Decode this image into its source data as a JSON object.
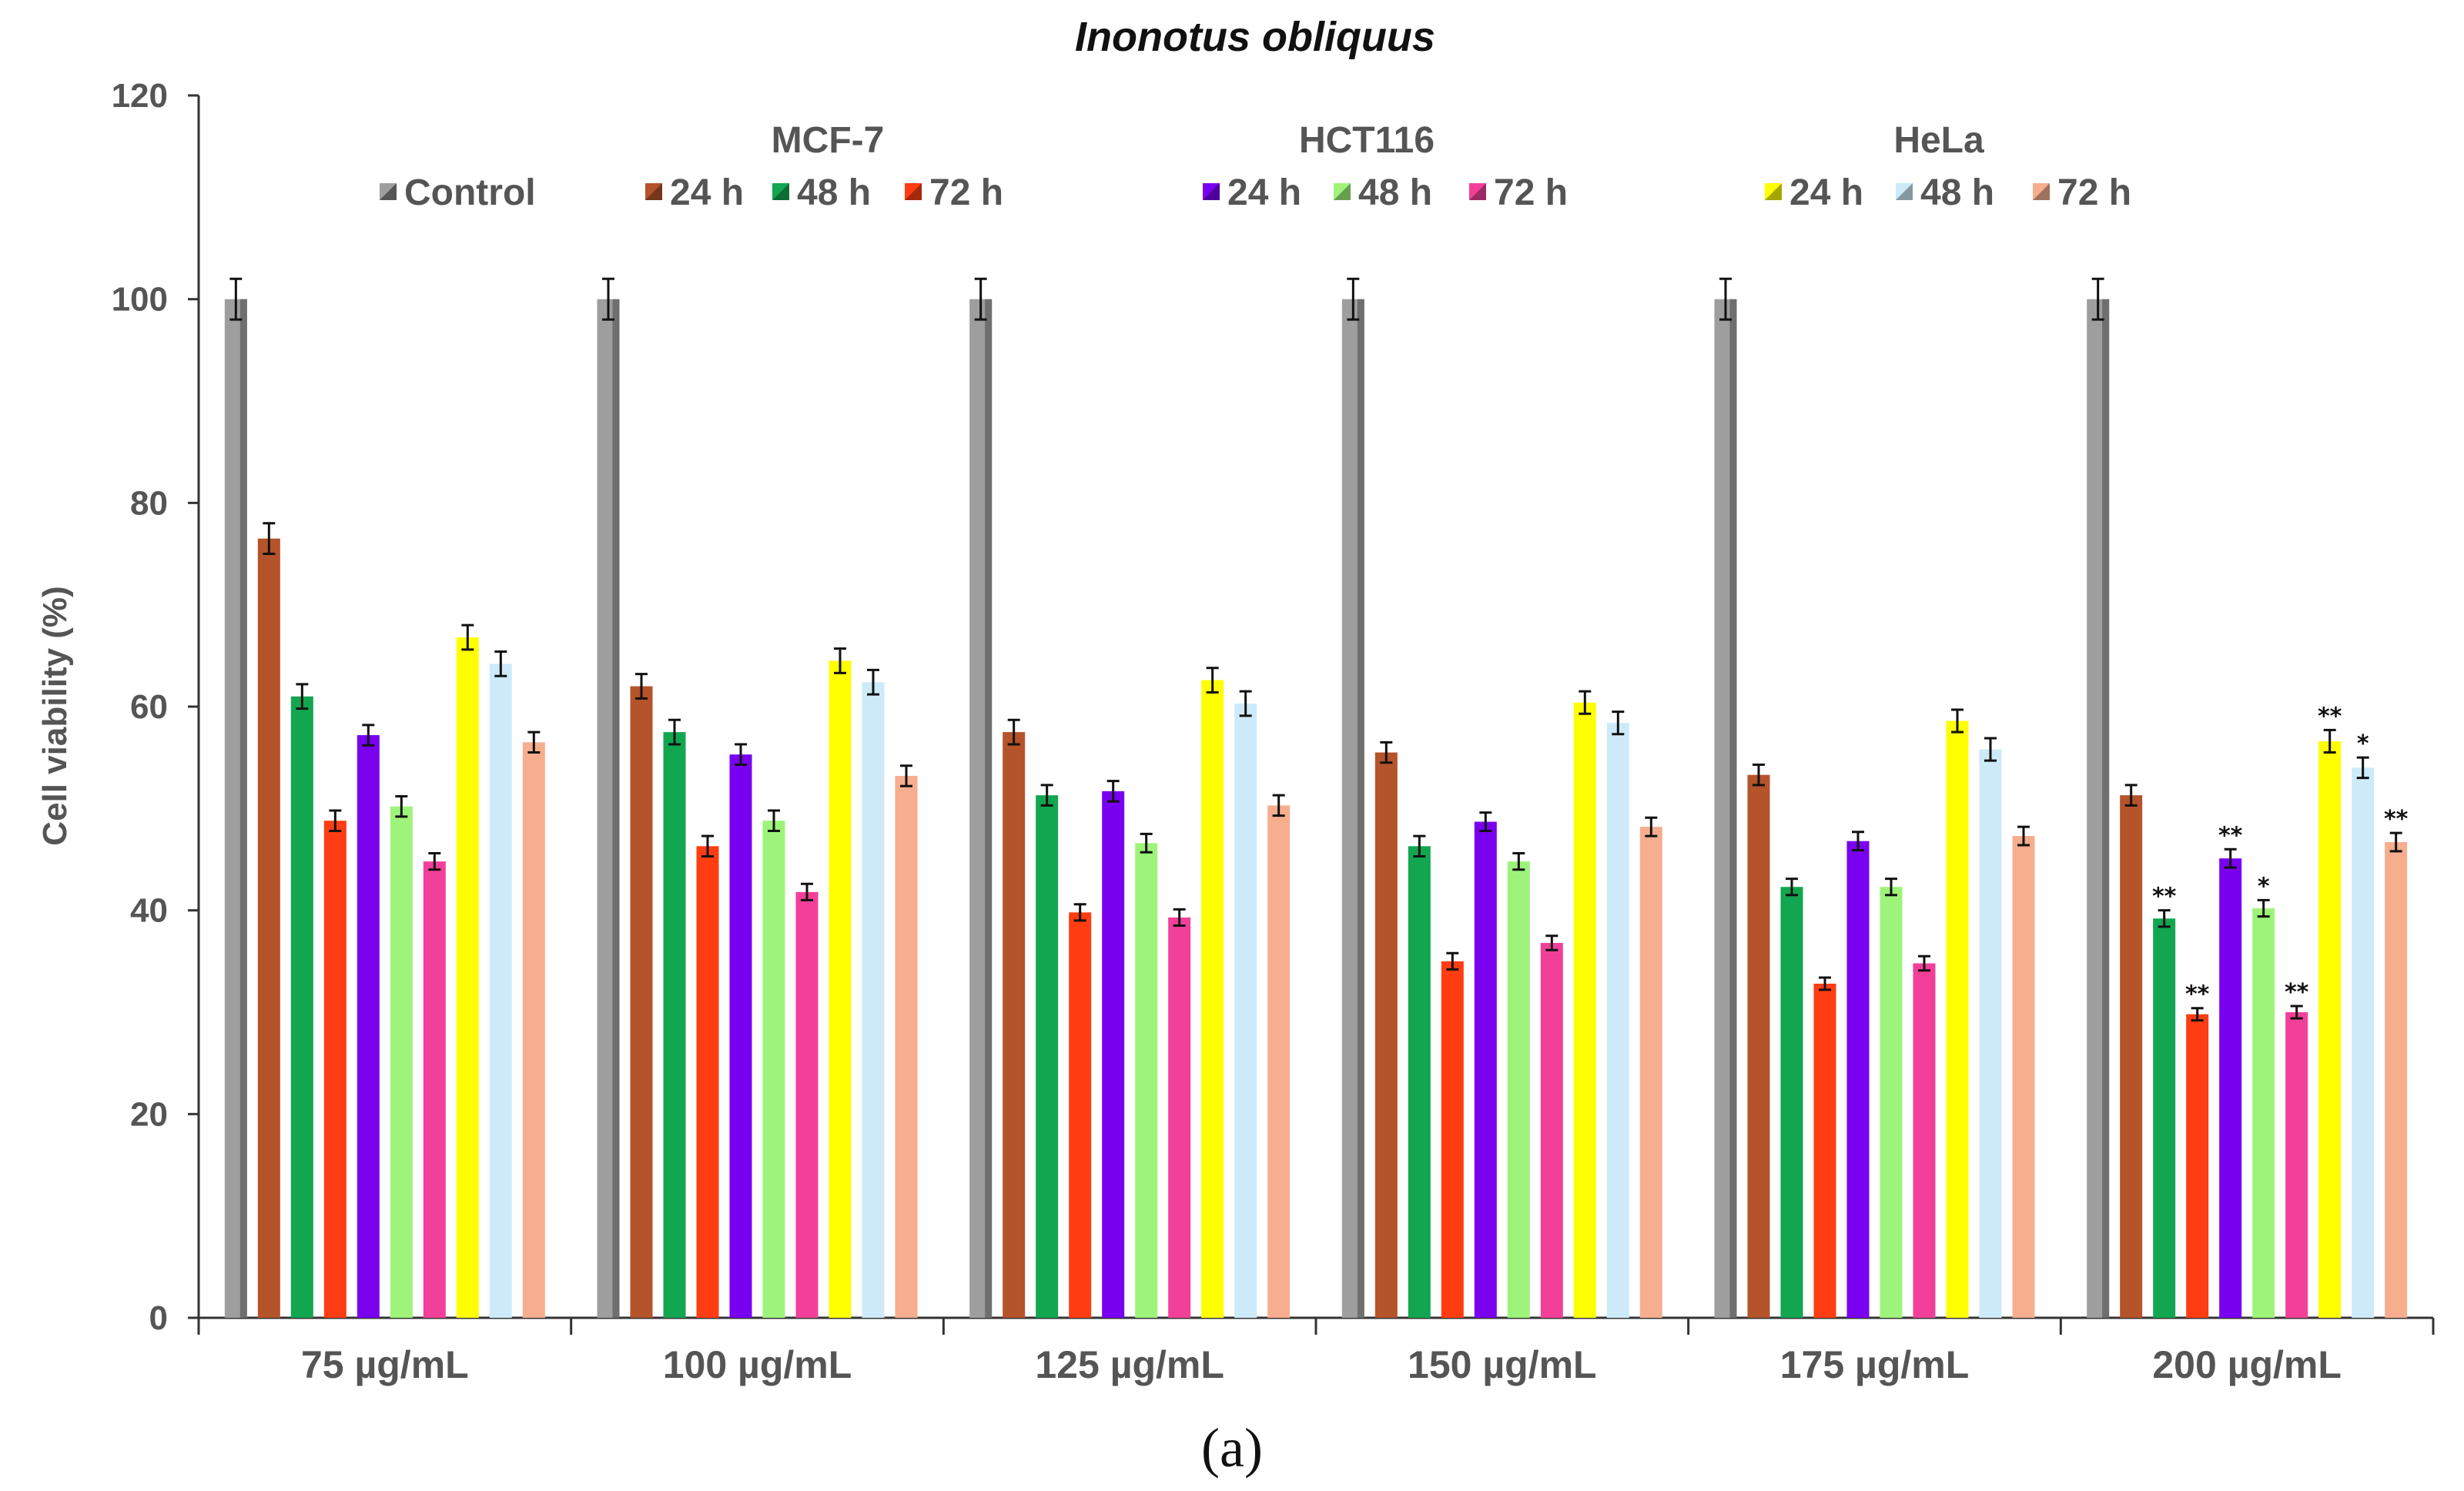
{
  "caption": "(a)",
  "chart_data": {
    "type": "bar",
    "title": "Inonotus obliquus",
    "xlabel": "",
    "ylabel": "Cell viability (%)",
    "ylim": [
      0,
      120
    ],
    "yticks": [
      0,
      20,
      40,
      60,
      80,
      100,
      120
    ],
    "grid": false,
    "categories": [
      "75 µg/mL",
      "100 µg/mL",
      "125 µg/mL",
      "150 µg/mL",
      "175 µg/mL",
      "200 µg/mL"
    ],
    "legend_groups": [
      {
        "name": "",
        "series": [
          "Control"
        ]
      },
      {
        "name": "MCF-7",
        "series": [
          "MCF-7 24 h",
          "MCF-7 48 h",
          "MCF-7 72 h"
        ]
      },
      {
        "name": "HCT116",
        "series": [
          "HCT116 24 h",
          "HCT116 48 h",
          "HCT116 72 h"
        ]
      },
      {
        "name": "HeLa",
        "series": [
          "HeLa 24 h",
          "HeLa 48 h",
          "HeLa 72 h"
        ]
      }
    ],
    "series": [
      {
        "name": "Control",
        "label": "Control",
        "color": "#9e9e9e",
        "values": [
          100,
          100,
          100,
          100,
          100,
          100
        ],
        "errors": [
          2,
          2,
          2,
          2,
          2,
          2
        ],
        "sig": [
          "",
          "",
          "",
          "",
          "",
          ""
        ]
      },
      {
        "name": "MCF-7 24 h",
        "label": "24 h",
        "color": "#b5532a",
        "values": [
          76.5,
          62,
          57.5,
          55.5,
          53.3,
          51.3
        ],
        "errors": [
          1.5,
          1.2,
          1.2,
          1.0,
          1.0,
          1.0
        ],
        "sig": [
          "",
          "",
          "",
          "",
          "",
          ""
        ]
      },
      {
        "name": "MCF-7 48 h",
        "label": "48 h",
        "color": "#12a650",
        "values": [
          61,
          57.5,
          51.3,
          46.3,
          42.3,
          39.2
        ],
        "errors": [
          1.2,
          1.2,
          1.0,
          1.0,
          0.8,
          0.8
        ],
        "sig": [
          "",
          "",
          "",
          "",
          "",
          "**"
        ]
      },
      {
        "name": "MCF-7 72 h",
        "label": "72 h",
        "color": "#ff3d12",
        "values": [
          48.8,
          46.3,
          39.8,
          35,
          32.8,
          29.8
        ],
        "errors": [
          1.0,
          1.0,
          0.8,
          0.8,
          0.6,
          0.6
        ],
        "sig": [
          "",
          "",
          "",
          "",
          "",
          "**"
        ]
      },
      {
        "name": "HCT116 24 h",
        "label": "24 h",
        "color": "#7a00f0",
        "values": [
          57.2,
          55.3,
          51.7,
          48.7,
          46.8,
          45.1
        ],
        "errors": [
          1.0,
          1.0,
          1.0,
          0.9,
          0.9,
          0.9
        ],
        "sig": [
          "",
          "",
          "",
          "",
          "",
          "**"
        ]
      },
      {
        "name": "HCT116 48 h",
        "label": "48 h",
        "color": "#9ef47a",
        "values": [
          50.2,
          48.8,
          46.6,
          44.8,
          42.3,
          40.2
        ],
        "errors": [
          1.0,
          1.0,
          0.9,
          0.8,
          0.8,
          0.8
        ],
        "sig": [
          "",
          "",
          "",
          "",
          "",
          "*"
        ]
      },
      {
        "name": "HCT116 72 h",
        "label": "72 h",
        "color": "#f2409a",
        "values": [
          44.8,
          41.8,
          39.3,
          36.8,
          34.8,
          30
        ],
        "errors": [
          0.8,
          0.8,
          0.8,
          0.7,
          0.7,
          0.6
        ],
        "sig": [
          "",
          "",
          "",
          "",
          "",
          "**"
        ]
      },
      {
        "name": "HeLa 24 h",
        "label": "24 h",
        "color": "#ffff00",
        "values": [
          66.8,
          64.5,
          62.6,
          60.4,
          58.6,
          56.6
        ],
        "errors": [
          1.2,
          1.2,
          1.2,
          1.1,
          1.1,
          1.1
        ],
        "sig": [
          "",
          "",
          "",
          "",
          "",
          "**"
        ]
      },
      {
        "name": "HeLa 48 h",
        "label": "48 h",
        "color": "#cdeaf8",
        "values": [
          64.2,
          62.4,
          60.3,
          58.4,
          55.8,
          54
        ],
        "errors": [
          1.2,
          1.2,
          1.2,
          1.1,
          1.1,
          1.0
        ],
        "sig": [
          "",
          "",
          "",
          "",
          "",
          "*"
        ]
      },
      {
        "name": "HeLa 72 h",
        "label": "72 h",
        "color": "#f6ae8e",
        "values": [
          56.5,
          53.2,
          50.3,
          48.2,
          47.3,
          46.7
        ],
        "errors": [
          1.0,
          1.0,
          1.0,
          0.9,
          0.9,
          0.9
        ],
        "sig": [
          "",
          "",
          "",
          "",
          "",
          "**"
        ]
      }
    ]
  }
}
